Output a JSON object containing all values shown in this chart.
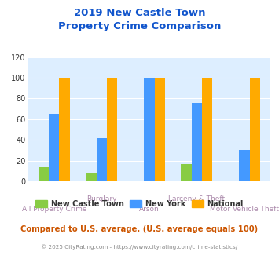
{
  "title": "2019 New Castle Town\nProperty Crime Comparison",
  "categories": [
    "All Property Crime",
    "Burglary",
    "Arson",
    "Larceny & Theft",
    "Motor Vehicle Theft"
  ],
  "top_labels": [
    "",
    "Burglary",
    "",
    "Larceny & Theft",
    ""
  ],
  "bot_labels": [
    "All Property Crime",
    "",
    "Arson",
    "",
    "Motor Vehicle Theft"
  ],
  "series": {
    "New Castle Town": [
      14,
      8,
      0,
      17,
      0
    ],
    "New York": [
      65,
      42,
      100,
      76,
      30
    ],
    "National": [
      100,
      100,
      100,
      100,
      100
    ]
  },
  "colors": {
    "New Castle Town": "#88cc44",
    "New York": "#4499ff",
    "National": "#ffaa00"
  },
  "ylim": [
    0,
    120
  ],
  "yticks": [
    0,
    20,
    40,
    60,
    80,
    100,
    120
  ],
  "plot_bg": "#ddeeff",
  "title_color": "#1155cc",
  "xlabel_color": "#aa88aa",
  "footer_text": "Compared to U.S. average. (U.S. average equals 100)",
  "copyright_text": "© 2025 CityRating.com - https://www.cityrating.com/crime-statistics/",
  "footer_color": "#cc5500",
  "copyright_color": "#888888"
}
